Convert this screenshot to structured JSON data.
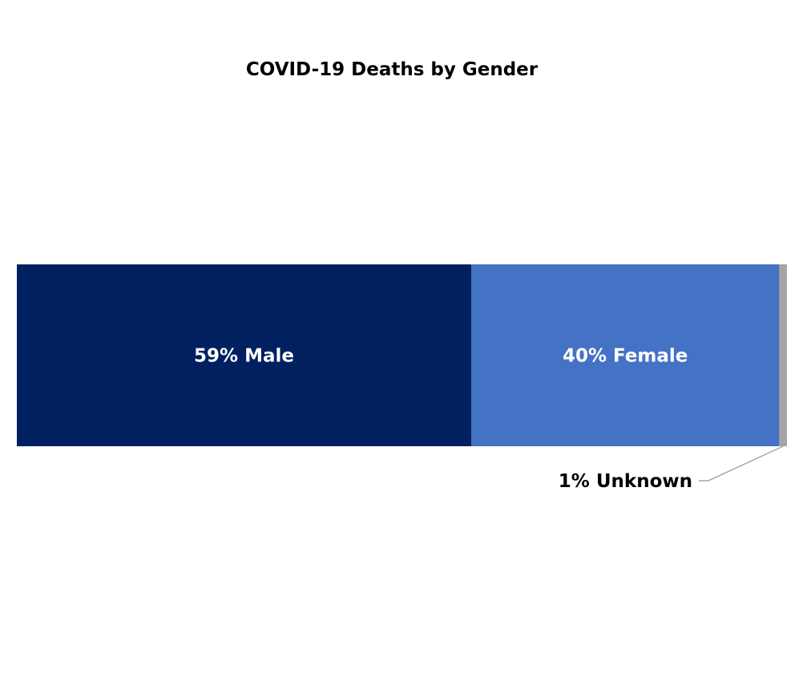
{
  "chart_data": {
    "type": "bar",
    "orientation": "horizontal",
    "stacked": true,
    "title": "COVID-19 Deaths by Gender",
    "xlabel": "",
    "ylabel": "",
    "xlim": [
      0,
      100
    ],
    "grid": false,
    "legend": "none",
    "series": [
      {
        "name": "Male",
        "value": 59,
        "label": "59% Male",
        "color": "#002060",
        "label_position": "inside"
      },
      {
        "name": "Female",
        "value": 40,
        "label": "40% Female",
        "color": "#4472C4",
        "label_position": "inside"
      },
      {
        "name": "Unknown",
        "value": 1,
        "label": "1% Unknown",
        "color": "#A5A5A5",
        "label_position": "callout"
      }
    ]
  }
}
